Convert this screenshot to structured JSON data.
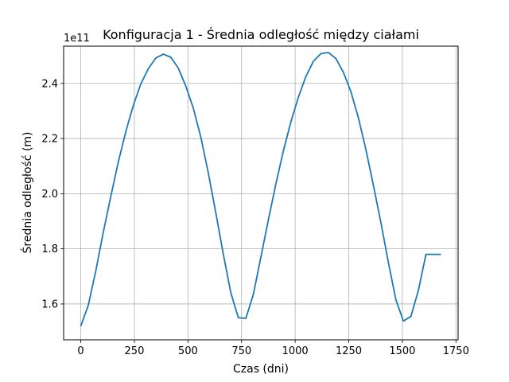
{
  "chart_data": {
    "type": "line",
    "title": "Konfiguracja 1 - Średnia odległość między ciałami",
    "xlabel": "Czas (dni)",
    "ylabel": "Średnia odległość (m)",
    "offset_label": "1e11",
    "xlim": [
      -80,
      1760
    ],
    "ylim": [
      1.47,
      2.535
    ],
    "xticks": [
      0,
      250,
      500,
      750,
      1000,
      1250,
      1500,
      1750
    ],
    "yticks": [
      1.6,
      1.8,
      2.0,
      2.2,
      2.4
    ],
    "xtick_labels": [
      "0",
      "250",
      "500",
      "750",
      "1000",
      "1250",
      "1500",
      "1750"
    ],
    "ytick_labels": [
      "1.6",
      "1.8",
      "2.0",
      "2.2",
      "2.4"
    ],
    "grid": true,
    "line_color": "#1f77b4",
    "series": [
      {
        "x": [
          0,
          35,
          70,
          105,
          140,
          175,
          210,
          245,
          280,
          315,
          350,
          385,
          420,
          455,
          490,
          525,
          560,
          595,
          630,
          665,
          700,
          735,
          770,
          805,
          840,
          875,
          910,
          945,
          980,
          1015,
          1050,
          1085,
          1120,
          1155,
          1190,
          1225,
          1260,
          1295,
          1330,
          1365,
          1400,
          1435,
          1470,
          1505,
          1540,
          1575,
          1610,
          1645,
          1680
        ],
        "y": [
          1.52,
          1.595,
          1.72,
          1.86,
          1.99,
          2.115,
          2.225,
          2.32,
          2.398,
          2.453,
          2.492,
          2.506,
          2.495,
          2.455,
          2.39,
          2.31,
          2.205,
          2.075,
          1.93,
          1.78,
          1.64,
          1.55,
          1.548,
          1.635,
          1.77,
          1.905,
          2.035,
          2.155,
          2.26,
          2.35,
          2.425,
          2.48,
          2.508,
          2.512,
          2.49,
          2.44,
          2.37,
          2.275,
          2.16,
          2.03,
          1.895,
          1.75,
          1.615,
          1.538,
          1.555,
          1.65,
          1.78,
          1.78,
          1.78
        ]
      }
    ]
  }
}
